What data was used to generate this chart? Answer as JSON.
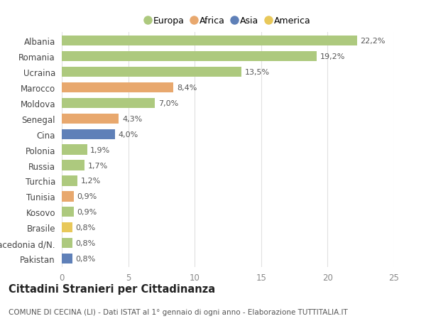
{
  "categories": [
    "Albania",
    "Romania",
    "Ucraina",
    "Marocco",
    "Moldova",
    "Senegal",
    "Cina",
    "Polonia",
    "Russia",
    "Turchia",
    "Tunisia",
    "Kosovo",
    "Brasile",
    "Macedonia d/N.",
    "Pakistan"
  ],
  "values": [
    22.2,
    19.2,
    13.5,
    8.4,
    7.0,
    4.3,
    4.0,
    1.9,
    1.7,
    1.2,
    0.9,
    0.9,
    0.8,
    0.8,
    0.8
  ],
  "labels": [
    "22,2%",
    "19,2%",
    "13,5%",
    "8,4%",
    "7,0%",
    "4,3%",
    "4,0%",
    "1,9%",
    "1,7%",
    "1,2%",
    "0,9%",
    "0,9%",
    "0,8%",
    "0,8%",
    "0,8%"
  ],
  "continent": [
    "Europa",
    "Europa",
    "Europa",
    "Africa",
    "Europa",
    "Africa",
    "Asia",
    "Europa",
    "Europa",
    "Europa",
    "Africa",
    "Europa",
    "America",
    "Europa",
    "Asia"
  ],
  "colors": {
    "Europa": "#adc97e",
    "Africa": "#e8a86e",
    "Asia": "#5f80b8",
    "America": "#e8c85a"
  },
  "legend_order": [
    "Europa",
    "Africa",
    "Asia",
    "America"
  ],
  "xlim": [
    0,
    25
  ],
  "xticks": [
    0,
    5,
    10,
    15,
    20,
    25
  ],
  "title": "Cittadini Stranieri per Cittadinanza",
  "subtitle": "COMUNE DI CECINA (LI) - Dati ISTAT al 1° gennaio di ogni anno - Elaborazione TUTTITALIA.IT",
  "bg_color": "#ffffff",
  "grid_color": "#e0e0e0",
  "bar_height": 0.65,
  "label_fontsize": 8,
  "ytick_fontsize": 8.5,
  "xtick_fontsize": 8.5,
  "title_fontsize": 10.5,
  "subtitle_fontsize": 7.5,
  "legend_fontsize": 9
}
